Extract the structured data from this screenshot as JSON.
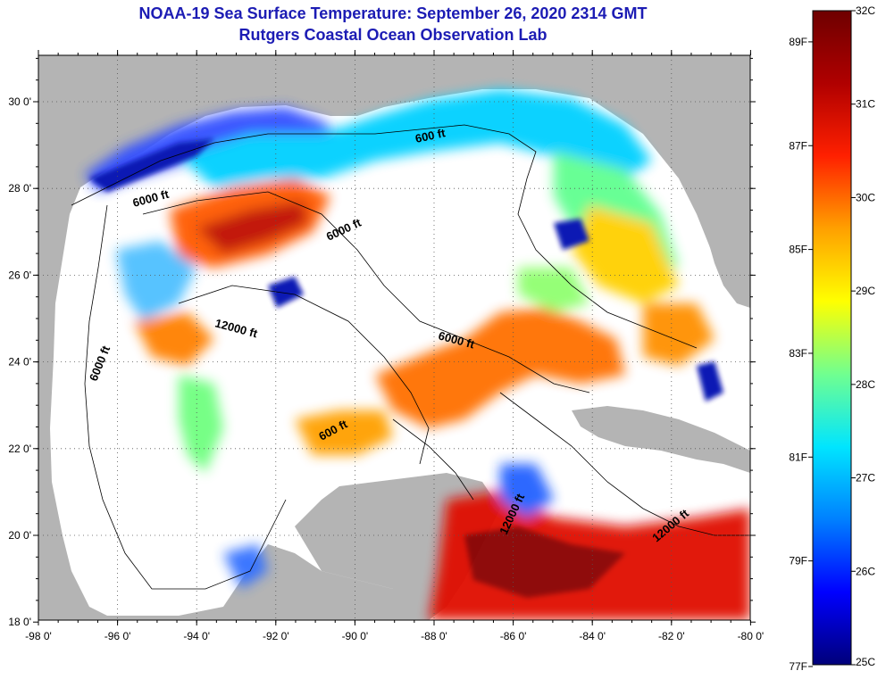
{
  "title": {
    "line1": "NOAA-19 Sea Surface Temperature:  September 26, 2020 2314 GMT",
    "line2": "Rutgers Coastal Ocean Observation Lab"
  },
  "axes": {
    "lon_labels": [
      "-98 0'",
      "-96 0'",
      "-94 0'",
      "-92 0'",
      "-90 0'",
      "-88 0'",
      "-86 0'",
      "-84 0'",
      "-82 0'",
      "-80 0'"
    ],
    "lat_labels": [
      "30 0'",
      "28 0'",
      "26 0'",
      "24 0'",
      "22 0'",
      "20 0'",
      "18 0'"
    ]
  },
  "contour_labels": [
    "600 ft",
    "6000 ft",
    "6000 ft",
    "12000 ft",
    "6000 ft",
    "6000 ft",
    "600 ft",
    "12000 ft",
    "12000 ft"
  ],
  "colorbar": {
    "celsius": [
      "32C",
      "31C",
      "30C",
      "29C",
      "28C",
      "27C",
      "26C",
      "25C"
    ],
    "fahrenheit": [
      "89F",
      "87F",
      "85F",
      "83F",
      "81F",
      "79F",
      "77F"
    ],
    "colors": [
      "#00007a",
      "#0000ff",
      "#0080ff",
      "#00e5ff",
      "#70ff90",
      "#ffff00",
      "#ffa000",
      "#ff2000",
      "#b00000",
      "#6e0000"
    ]
  },
  "colors": {
    "land": "#b4b4b4",
    "no_data": "#ffffff",
    "title": "#1c1cb4"
  }
}
